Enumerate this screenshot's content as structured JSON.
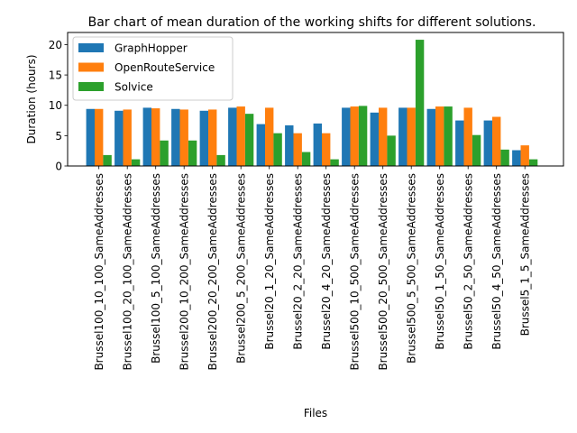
{
  "chart_data": {
    "type": "bar",
    "title": "Bar chart of mean duration of the working shifts for different solutions.",
    "xlabel": "Files",
    "ylabel": "Duration (hours)",
    "ylim": [
      0,
      22
    ],
    "yticks": [
      0,
      5,
      10,
      15,
      20
    ],
    "grid": false,
    "legend_position": "top-left",
    "categories": [
      "Brussel100_10_100_SameAddresses",
      "Brussel100_20_100_SameAddresses",
      "Brussel100_5_100_SameAddresses",
      "Brussel200_10_200_SameAddresses",
      "Brussel200_20_200_SameAddresses",
      "Brussel200_5_200_SameAddresses",
      "Brussel20_1_20_SameAddresses",
      "Brussel20_2_20_SameAddresses",
      "Brussel20_4_20_SameAddresses",
      "Brussel500_10_500_SameAddresses",
      "Brussel500_20_500_SameAddresses",
      "Brussel500_5_500_SameAddresses",
      "Brussel50_1_50_SameAddresses",
      "Brussel50_2_50_SameAddresses",
      "Brussel50_4_50_SameAddresses",
      "Brussel5_1_5_SameAddresses"
    ],
    "series": [
      {
        "name": "GraphHopper",
        "color": "#1f77b4",
        "values": [
          9.4,
          9.1,
          9.6,
          9.4,
          9.1,
          9.6,
          6.9,
          6.7,
          7.0,
          9.6,
          8.8,
          9.6,
          9.4,
          7.5,
          7.5,
          2.6
        ]
      },
      {
        "name": "OpenRouteService",
        "color": "#ff7f0e",
        "values": [
          9.4,
          9.3,
          9.5,
          9.3,
          9.3,
          9.8,
          9.6,
          5.4,
          5.4,
          9.8,
          9.6,
          9.6,
          9.8,
          9.6,
          8.1,
          3.4
        ]
      },
      {
        "name": "Solvice",
        "color": "#2ca02c",
        "values": [
          1.8,
          1.1,
          4.2,
          4.2,
          1.8,
          8.6,
          5.4,
          2.3,
          1.1,
          9.9,
          5.0,
          20.8,
          9.8,
          5.1,
          2.7,
          1.1
        ]
      }
    ]
  }
}
